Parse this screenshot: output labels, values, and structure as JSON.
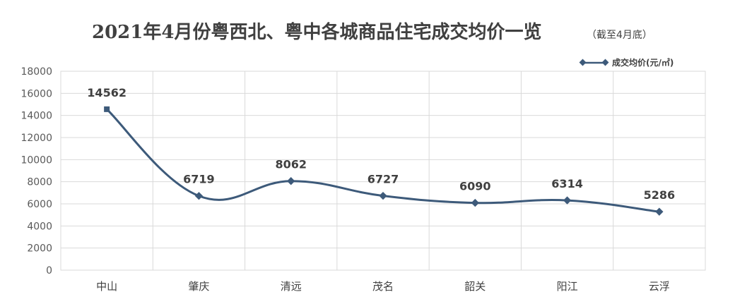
{
  "chart_data": {
    "type": "line",
    "title": "2021年4月份粤西北、粤中各城商品住宅成交均价一览",
    "subtitle": "（截至4月底）",
    "categories": [
      "中山",
      "肇庆",
      "清远",
      "茂名",
      "韶关",
      "阳江",
      "云浮"
    ],
    "series": [
      {
        "name": "成交均价(元/㎡)",
        "values": [
          14562,
          6719,
          8062,
          6727,
          6090,
          6314,
          5286
        ],
        "color": "#3d5a7a"
      }
    ],
    "yticks": [
      0,
      2000,
      4000,
      6000,
      8000,
      10000,
      12000,
      14000,
      16000,
      18000
    ],
    "ylim": [
      0,
      18000
    ],
    "grid": true,
    "legend_position": "top-right",
    "smooth": true,
    "data_labels": true
  }
}
